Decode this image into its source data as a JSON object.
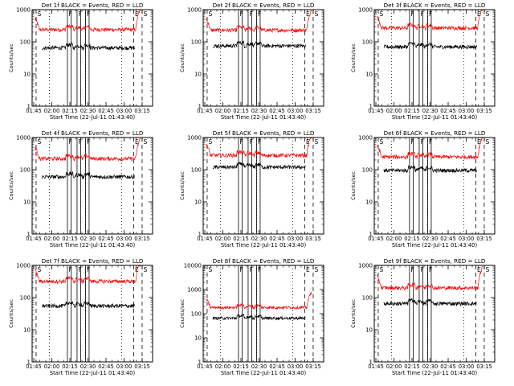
{
  "colors": {
    "events": "#000000",
    "lld": "#ff0000",
    "axes": "#000000",
    "background": "#ffffff"
  },
  "shared": {
    "xlabel": "Start Time (22-Jul-11 01:43:40)",
    "ylabel": "Counts/sec",
    "xticks": [
      "01:45",
      "02:00",
      "02:15",
      "02:30",
      "02:45",
      "03:00",
      "03:15"
    ],
    "xtick_values_min": [
      1.3333,
      16.3333,
      31.3333,
      46.3333,
      61.3333,
      76.3333,
      91.3333
    ],
    "xlim_min": [
      0,
      100
    ],
    "scale": "log",
    "line_markers": [
      {
        "label": "S",
        "t": 3.3,
        "style": "dashed"
      },
      {
        "label": "",
        "t": 14.3,
        "style": "dotted"
      },
      {
        "label": "F",
        "t": 29.3,
        "style": "solid"
      },
      {
        "label": "",
        "t": 32.3,
        "style": "solid"
      },
      {
        "label": "F",
        "t": 37.3,
        "style": "solid"
      },
      {
        "label": "",
        "t": 40.3,
        "style": "solid"
      },
      {
        "label": "",
        "t": 44.3,
        "style": "dotted"
      },
      {
        "label": "F",
        "t": 44.3,
        "style": "solid"
      },
      {
        "label": "",
        "t": 47.3,
        "style": "solid"
      },
      {
        "label": "",
        "t": 74.3,
        "style": "dotted"
      },
      {
        "label": "E",
        "t": 84.3,
        "style": "dashed"
      },
      {
        "label": "S",
        "t": 91.3,
        "style": "dashed"
      }
    ]
  },
  "chart_data": [
    {
      "type": "line",
      "title": "Det 1f BLACK = Events, RED = LLD",
      "ylim": [
        1,
        1000
      ],
      "yticks": [
        "1",
        "10",
        "100",
        "1000"
      ],
      "series": [
        {
          "name": "LLD",
          "color": "#ff0000",
          "base": 240,
          "t_range": [
            2.5,
            90
          ]
        },
        {
          "name": "Events",
          "color": "#000000",
          "base": 65,
          "t_range": [
            8,
            85
          ]
        }
      ]
    },
    {
      "type": "line",
      "title": "Det 2f BLACK = Events, RED = LLD",
      "ylim": [
        1,
        1000
      ],
      "yticks": [
        "1",
        "10",
        "100",
        "1000"
      ],
      "series": [
        {
          "name": "LLD",
          "color": "#ff0000",
          "base": 230,
          "t_range": [
            2.5,
            90
          ]
        },
        {
          "name": "Events",
          "color": "#000000",
          "base": 75,
          "t_range": [
            8,
            85
          ]
        }
      ]
    },
    {
      "type": "line",
      "title": "Det 3f BLACK = Events, RED = LLD",
      "ylim": [
        1,
        1000
      ],
      "yticks": [
        "1",
        "10",
        "100",
        "1000"
      ],
      "series": [
        {
          "name": "LLD",
          "color": "#ff0000",
          "base": 270,
          "t_range": [
            2.5,
            90
          ]
        },
        {
          "name": "Events",
          "color": "#000000",
          "base": 70,
          "t_range": [
            8,
            85
          ]
        }
      ]
    },
    {
      "type": "line",
      "title": "Det 4f BLACK = Events, RED = LLD",
      "ylim": [
        1,
        1000
      ],
      "yticks": [
        "1",
        "10",
        "100",
        "1000"
      ],
      "series": [
        {
          "name": "LLD",
          "color": "#ff0000",
          "base": 220,
          "t_range": [
            2.5,
            90
          ]
        },
        {
          "name": "Events",
          "color": "#000000",
          "base": 60,
          "t_range": [
            8,
            85
          ]
        }
      ]
    },
    {
      "type": "line",
      "title": "Det 5f BLACK = Events, RED = LLD",
      "ylim": [
        1,
        1000
      ],
      "yticks": [
        "1",
        "10",
        "100",
        "1000"
      ],
      "series": [
        {
          "name": "LLD",
          "color": "#ff0000",
          "base": 280,
          "t_range": [
            2.5,
            90
          ]
        },
        {
          "name": "Events",
          "color": "#000000",
          "base": 120,
          "t_range": [
            8,
            85
          ]
        }
      ]
    },
    {
      "type": "line",
      "title": "Det 6f BLACK = Events, RED = LLD",
      "ylim": [
        1,
        1000
      ],
      "yticks": [
        "1",
        "10",
        "100",
        "1000"
      ],
      "series": [
        {
          "name": "LLD",
          "color": "#ff0000",
          "base": 250,
          "t_range": [
            2.5,
            90
          ]
        },
        {
          "name": "Events",
          "color": "#000000",
          "base": 95,
          "t_range": [
            8,
            85
          ]
        }
      ]
    },
    {
      "type": "line",
      "title": "Det 7f BLACK = Events, RED = LLD",
      "ylim": [
        1,
        1000
      ],
      "yticks": [
        "1",
        "10",
        "100",
        "1000"
      ],
      "series": [
        {
          "name": "LLD",
          "color": "#ff0000",
          "base": 320,
          "t_range": [
            2.5,
            90
          ]
        },
        {
          "name": "Events",
          "color": "#000000",
          "base": 55,
          "t_range": [
            8,
            85
          ]
        }
      ]
    },
    {
      "type": "line",
      "title": "Det 8f BLACK = Events, RED = LLD",
      "ylim": [
        1,
        10000
      ],
      "yticks": [
        "1",
        "10",
        "100",
        "1000",
        "10000"
      ],
      "series": [
        {
          "name": "LLD",
          "color": "#ff0000",
          "base": 180,
          "t_range": [
            2.5,
            90
          ]
        },
        {
          "name": "Events",
          "color": "#000000",
          "base": 65,
          "t_range": [
            8,
            85
          ]
        }
      ]
    },
    {
      "type": "line",
      "title": "Det 9f BLACK = Events, RED = LLD",
      "ylim": [
        1,
        1000
      ],
      "yticks": [
        "1",
        "10",
        "100",
        "1000"
      ],
      "series": [
        {
          "name": "LLD",
          "color": "#ff0000",
          "base": 200,
          "t_range": [
            2.5,
            90
          ]
        },
        {
          "name": "Events",
          "color": "#000000",
          "base": 65,
          "t_range": [
            8,
            85
          ]
        }
      ]
    }
  ]
}
